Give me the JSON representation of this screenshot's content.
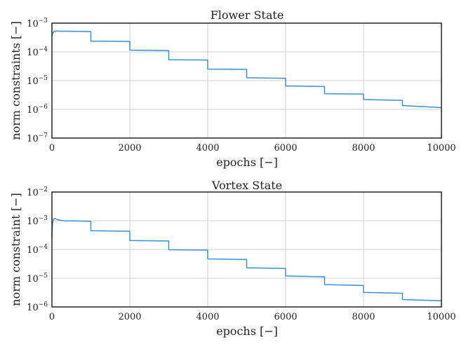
{
  "chart_data": [
    {
      "type": "line",
      "title": "Flower State",
      "xlabel": "epochs [−]",
      "ylabel": "norm constraints [−]",
      "xlim": [
        0,
        10000
      ],
      "ylim": [
        1e-07,
        0.001
      ],
      "yscale": "log",
      "grid": true,
      "xticks": [
        0,
        2000,
        4000,
        6000,
        8000,
        10000
      ],
      "xtick_labels": [
        "0",
        "2000",
        "4000",
        "6000",
        "8000",
        "10000"
      ],
      "yticks": [
        1e-07,
        1e-06,
        1e-05,
        0.0001,
        0.001
      ],
      "ytick_labels": [
        {
          "base": "10",
          "exp": "−7"
        },
        {
          "base": "10",
          "exp": "−6"
        },
        {
          "base": "10",
          "exp": "−5"
        },
        {
          "base": "10",
          "exp": "−4"
        },
        {
          "base": "10",
          "exp": "−3"
        }
      ],
      "series": [
        {
          "color": "#3a8fd6",
          "points": [
            [
              0,
              0.00036
            ],
            [
              20,
              0.00045
            ],
            [
              50,
              0.0005
            ],
            [
              100,
              0.00053
            ],
            [
              200,
              0.000525
            ],
            [
              500,
              0.00052
            ],
            [
              999,
              0.00051
            ],
            [
              1000,
              0.000235
            ],
            [
              1999,
              0.00023
            ],
            [
              2000,
              0.000115
            ],
            [
              2999,
              0.00011
            ],
            [
              3000,
              5.3e-05
            ],
            [
              3999,
              5.2e-05
            ],
            [
              4000,
              2.5e-05
            ],
            [
              4999,
              2.45e-05
            ],
            [
              5000,
              1.25e-05
            ],
            [
              5999,
              1.2e-05
            ],
            [
              6000,
              6.5e-06
            ],
            [
              6999,
              6.2e-06
            ],
            [
              7000,
              3.5e-06
            ],
            [
              7999,
              3.4e-06
            ],
            [
              8000,
              2.2e-06
            ],
            [
              8999,
              2.05e-06
            ],
            [
              9000,
              1.35e-06
            ],
            [
              9999,
              1.15e-06
            ]
          ]
        }
      ]
    },
    {
      "type": "line",
      "title": "Vortex State",
      "xlabel": "epochs [−]",
      "ylabel": "norm constraint [−]",
      "xlim": [
        0,
        10000
      ],
      "ylim": [
        1e-06,
        0.01
      ],
      "yscale": "log",
      "grid": true,
      "xticks": [
        0,
        2000,
        4000,
        6000,
        8000,
        10000
      ],
      "xtick_labels": [
        "0",
        "2000",
        "4000",
        "6000",
        "8000",
        "10000"
      ],
      "yticks": [
        1e-06,
        1e-05,
        0.0001,
        0.001,
        0.01
      ],
      "ytick_labels": [
        {
          "base": "10",
          "exp": "−6"
        },
        {
          "base": "10",
          "exp": "−5"
        },
        {
          "base": "10",
          "exp": "−4"
        },
        {
          "base": "10",
          "exp": "−3"
        },
        {
          "base": "10",
          "exp": "−2"
        }
      ],
      "series": [
        {
          "color": "#3a8fd6",
          "points": [
            [
              0,
              0.00025
            ],
            [
              15,
              0.0008
            ],
            [
              40,
              0.00115
            ],
            [
              80,
              0.0012
            ],
            [
              150,
              0.00108
            ],
            [
              300,
              0.001
            ],
            [
              999,
              0.00096
            ],
            [
              1000,
              0.00045
            ],
            [
              1999,
              0.00043
            ],
            [
              2000,
              0.000205
            ],
            [
              2999,
              0.000198
            ],
            [
              3000,
              9.8e-05
            ],
            [
              3999,
              9.5e-05
            ],
            [
              4000,
              4.7e-05
            ],
            [
              4999,
              4.5e-05
            ],
            [
              5000,
              2.3e-05
            ],
            [
              5999,
              2.2e-05
            ],
            [
              6000,
              1.2e-05
            ],
            [
              6999,
              1.12e-05
            ],
            [
              7000,
              6e-06
            ],
            [
              7999,
              5.6e-06
            ],
            [
              8000,
              3.2e-06
            ],
            [
              8999,
              3e-06
            ],
            [
              9000,
              1.8e-06
            ],
            [
              9999,
              1.65e-06
            ]
          ]
        }
      ]
    }
  ]
}
